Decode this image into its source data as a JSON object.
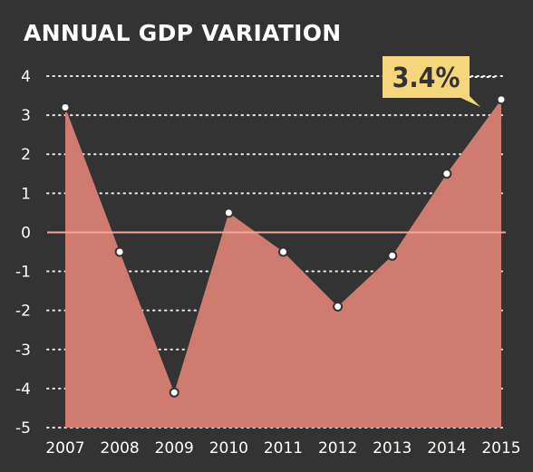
{
  "chart_data": {
    "type": "area",
    "title": "ANNUAL GDP VARIATION",
    "xlabel": "",
    "ylabel": "",
    "categories": [
      "2007",
      "2008",
      "2009",
      "2010",
      "2011",
      "2012",
      "2013",
      "2014",
      "2015"
    ],
    "series": [
      {
        "values": [
          3.2,
          -0.5,
          -4.1,
          0.5,
          -0.5,
          -1.9,
          -0.6,
          1.5,
          3.4
        ]
      }
    ],
    "ylim": [
      -5,
      4
    ],
    "yticks": [
      4,
      3,
      2,
      1,
      0,
      -1,
      -2,
      -3,
      -4,
      -5
    ],
    "grid": "horizontal-dotted",
    "callout": {
      "label": "3.4%",
      "category": "2015"
    },
    "colors": {
      "background": "#333333",
      "area": "#cf7b70",
      "zero_line": "#f1a79b",
      "grid": "#ffffff",
      "point": "#ffffff",
      "callout_bg": "#f6d67c",
      "text": "#ffffff"
    }
  }
}
